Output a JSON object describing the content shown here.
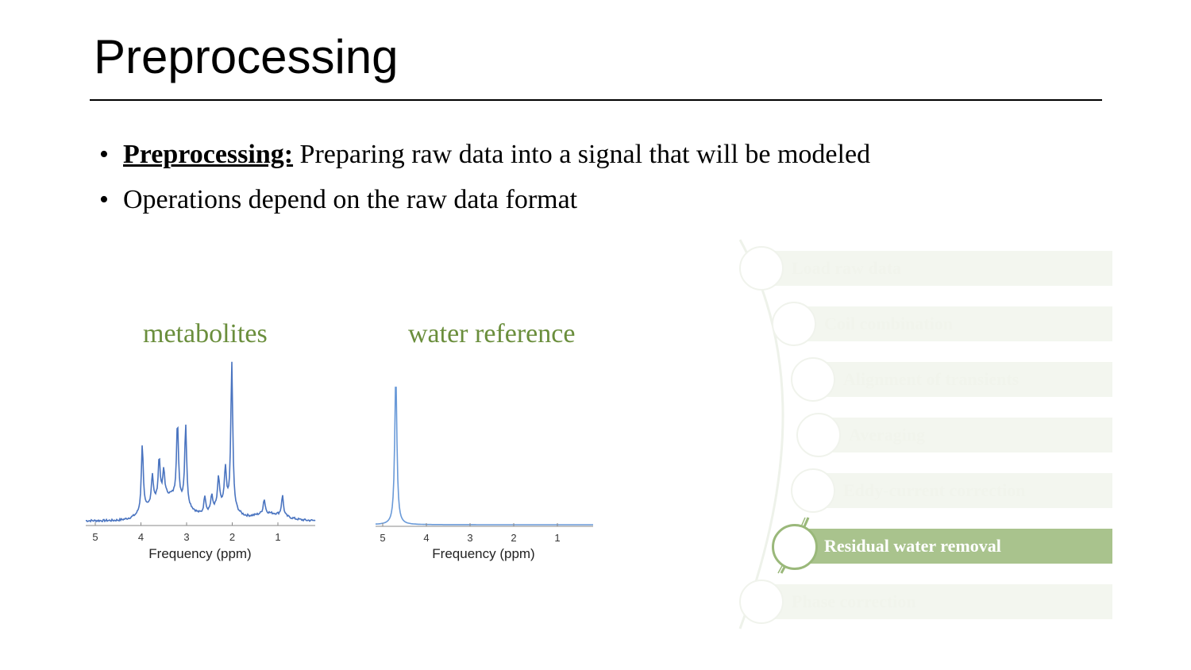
{
  "slide": {
    "title": "Preprocessing",
    "bullets": [
      {
        "term": "Preprocessing:",
        "text": " Preparing raw data into a signal that will be modeled"
      },
      {
        "term": "",
        "text": "Operations depend on the raw data format"
      }
    ],
    "bullet_glyph": "•"
  },
  "chart_data": [
    {
      "type": "line",
      "title": "metabolites",
      "xlabel": "Frequency (ppm)",
      "ylabel": "",
      "x_ticks": [
        "5",
        "4",
        "3",
        "2",
        "1"
      ],
      "xlim": [
        5.2,
        0.2
      ],
      "reversed_x": true,
      "color": "#4a74c0",
      "peaks": [
        {
          "ppm": 3.02,
          "height": 0.55
        },
        {
          "ppm": 3.2,
          "height": 0.53
        },
        {
          "ppm": 2.01,
          "height": 1.0
        },
        {
          "ppm": 3.97,
          "height": 0.47
        },
        {
          "ppm": 3.75,
          "height": 0.2
        },
        {
          "ppm": 3.6,
          "height": 0.28
        },
        {
          "ppm": 3.5,
          "height": 0.18
        },
        {
          "ppm": 2.3,
          "height": 0.2
        },
        {
          "ppm": 2.15,
          "height": 0.25
        },
        {
          "ppm": 2.45,
          "height": 0.1
        },
        {
          "ppm": 2.6,
          "height": 0.12
        },
        {
          "ppm": 1.3,
          "height": 0.1
        },
        {
          "ppm": 0.9,
          "height": 0.14
        }
      ]
    },
    {
      "type": "line",
      "title": "water reference",
      "xlabel": "Frequency (ppm)",
      "ylabel": "",
      "x_ticks": [
        "5",
        "4",
        "3",
        "2",
        "1"
      ],
      "xlim": [
        5.2,
        0.2
      ],
      "reversed_x": true,
      "color": "#6a9ad8",
      "peaks": [
        {
          "ppm": 4.7,
          "height": 1.0
        }
      ]
    }
  ],
  "pipeline": {
    "active_color": "#a9c38d",
    "steps": [
      {
        "label": "Load raw data",
        "state": "faded"
      },
      {
        "label": "Coil combination",
        "state": "faded"
      },
      {
        "label": "Alignment of transients",
        "state": "faded"
      },
      {
        "label": "Averaging",
        "state": "faded"
      },
      {
        "label": "Eddy-current correction",
        "state": "faded"
      },
      {
        "label": "Residual water removal",
        "state": "active"
      },
      {
        "label": "Phase correction",
        "state": "faded"
      }
    ]
  }
}
